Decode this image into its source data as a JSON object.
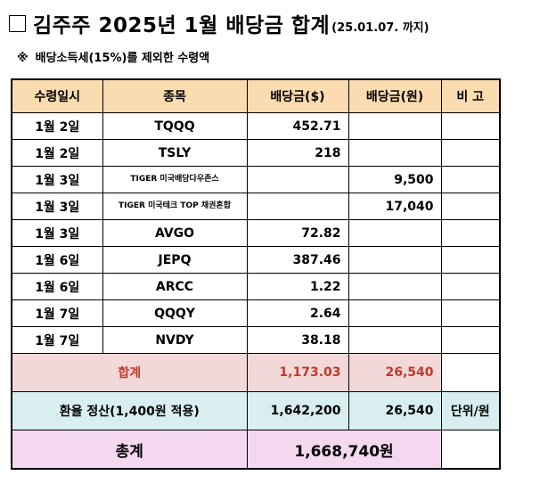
{
  "title": {
    "main": "김주주 2025년 1월 배당금 합계",
    "date_note": "(25.01.07. 까지)"
  },
  "note": {
    "mark": "※",
    "text": "배당소득세(15%)를 제외한 수령액"
  },
  "table": {
    "headers": [
      "수령일시",
      "종목",
      "배당금($)",
      "배당금(원)",
      "비 고"
    ],
    "rows": [
      {
        "date": "1월 2일",
        "stock": "TQQQ",
        "usd": "452.71",
        "krw": "",
        "note": ""
      },
      {
        "date": "1월 2일",
        "stock": "TSLY",
        "usd": "218",
        "krw": "",
        "note": ""
      },
      {
        "date": "1월 3일",
        "stock": "TIGER 미국배당다우존스",
        "usd": "",
        "krw": "9,500",
        "note": ""
      },
      {
        "date": "1월 3일",
        "stock": "TIGER 미국테크 TOP 채권혼합",
        "usd": "",
        "krw": "17,040",
        "note": ""
      },
      {
        "date": "1월 3일",
        "stock": "AVGO",
        "usd": "72.82",
        "krw": "",
        "note": ""
      },
      {
        "date": "1월 6일",
        "stock": "JEPQ",
        "usd": "387.46",
        "krw": "",
        "note": ""
      },
      {
        "date": "1월 6일",
        "stock": "ARCC",
        "usd": "1.22",
        "krw": "",
        "note": ""
      },
      {
        "date": "1월 7일",
        "stock": "QQQY",
        "usd": "2.64",
        "krw": "",
        "note": ""
      },
      {
        "date": "1월 7일",
        "stock": "NVDY",
        "usd": "38.18",
        "krw": "",
        "note": ""
      }
    ],
    "sum": {
      "label": "합계",
      "usd": "1,173.03",
      "krw": "26,540"
    },
    "fx": {
      "label": "환율 정산(1,400원 적용)",
      "usd": "1,642,200",
      "krw": "26,540",
      "note": "단위/원"
    },
    "total": {
      "label": "총계",
      "value": "1,668,740원"
    }
  },
  "colors": {
    "header_bg": "#fbdcb0",
    "sum_bg": "#f2d8d8",
    "sum_text": "#c0392b",
    "fx_bg": "#d8eef0",
    "total_bg": "#f3d8f0"
  }
}
